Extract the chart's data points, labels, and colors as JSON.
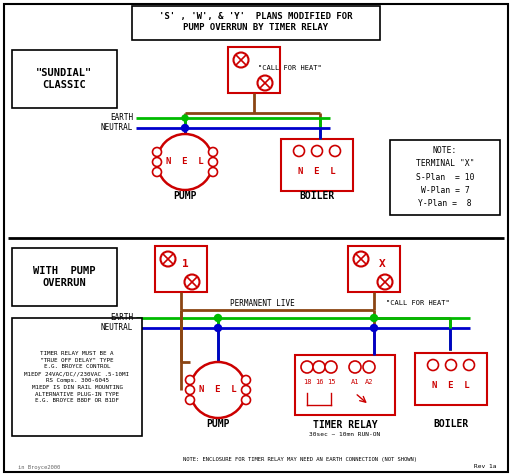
{
  "title_line1": "'S' , 'W', & 'Y'  PLANS MODIFIED FOR",
  "title_line2": "PUMP OVERRUN BY TIMER RELAY",
  "bg_color": "#ffffff",
  "red": "#cc0000",
  "green": "#00bb00",
  "blue": "#0000cc",
  "brown": "#8B4513",
  "dark": "#000000",
  "note_text": "NOTE:\nTERMINAL \"X\"\nS-Plan  = 10\nW-Plan = 7\nY-Plan =  8",
  "timer_note": "TIMER RELAY MUST BE A\n\"TRUE OFF DELAY\" TYPE\nE.G. BROYCE CONTROL\nM1EDF 24VAC/DC//230VAC .5-10MI\nRS Comps. 300-6045\nM1EDF IS DIN RAIL MOUNTING\nALTERNATIVE PLUG-IN TYPE\nE.G. BROYCE B8DF OR B1DF",
  "bottom_note": "NOTE: ENCLOSURE FOR TIMER RELAY MAY NEED AN EARTH CONNECTION (NOT SHOWN)",
  "rev_note": "Rev 1a",
  "watermark": "in Broyce2000"
}
